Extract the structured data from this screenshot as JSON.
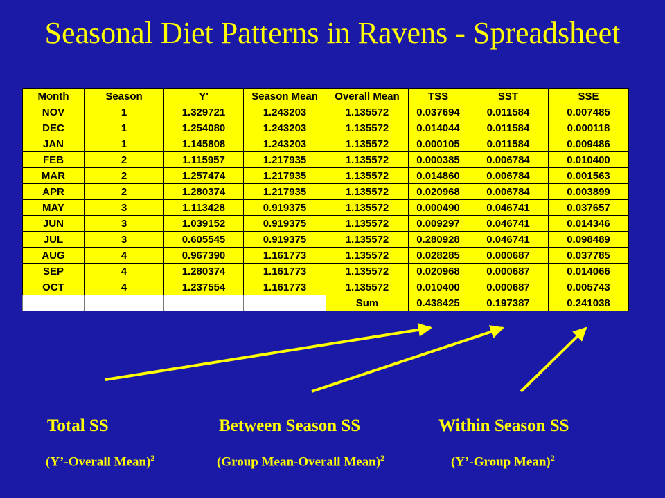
{
  "title": "Seasonal Diet Patterns in Ravens - Spreadsheet",
  "table": {
    "headers": [
      "Month",
      "Season",
      "Y'",
      "Season Mean",
      "Overall Mean",
      "TSS",
      "SST",
      "SSE"
    ],
    "rows": [
      [
        "NOV",
        "1",
        "1.329721",
        "1.243203",
        "1.135572",
        "0.037694",
        "0.011584",
        "0.007485"
      ],
      [
        "DEC",
        "1",
        "1.254080",
        "1.243203",
        "1.135572",
        "0.014044",
        "0.011584",
        "0.000118"
      ],
      [
        "JAN",
        "1",
        "1.145808",
        "1.243203",
        "1.135572",
        "0.000105",
        "0.011584",
        "0.009486"
      ],
      [
        "FEB",
        "2",
        "1.115957",
        "1.217935",
        "1.135572",
        "0.000385",
        "0.006784",
        "0.010400"
      ],
      [
        "MAR",
        "2",
        "1.257474",
        "1.217935",
        "1.135572",
        "0.014860",
        "0.006784",
        "0.001563"
      ],
      [
        "APR",
        "2",
        "1.280374",
        "1.217935",
        "1.135572",
        "0.020968",
        "0.006784",
        "0.003899"
      ],
      [
        "MAY",
        "3",
        "1.113428",
        "0.919375",
        "1.135572",
        "0.000490",
        "0.046741",
        "0.037657"
      ],
      [
        "JUN",
        "3",
        "1.039152",
        "0.919375",
        "1.135572",
        "0.009297",
        "0.046741",
        "0.014346"
      ],
      [
        "JUL",
        "3",
        "0.605545",
        "0.919375",
        "1.135572",
        "0.280928",
        "0.046741",
        "0.098489"
      ],
      [
        "AUG",
        "4",
        "0.967390",
        "1.161773",
        "1.135572",
        "0.028285",
        "0.000687",
        "0.037785"
      ],
      [
        "SEP",
        "4",
        "1.280374",
        "1.161773",
        "1.135572",
        "0.020968",
        "0.000687",
        "0.014066"
      ],
      [
        "OCT",
        "4",
        "1.237554",
        "1.161773",
        "1.135572",
        "0.010400",
        "0.000687",
        "0.005743"
      ]
    ],
    "sum_row": [
      "",
      "",
      "",
      "",
      "Sum",
      "0.438425",
      "0.197387",
      "0.241038"
    ]
  },
  "labels": {
    "total_ss": "Total SS",
    "between_ss": "Between Season SS",
    "within_ss": "Within Season SS",
    "total_formula": "(Y’-Overall Mean)",
    "between_formula": "(Group Mean-Overall Mean)",
    "within_formula": "(Y’-Group Mean)",
    "exponent": "2"
  },
  "colors": {
    "background": "#1a1aa6",
    "accent": "#ffff00",
    "blank_cell": "#ffffff"
  }
}
